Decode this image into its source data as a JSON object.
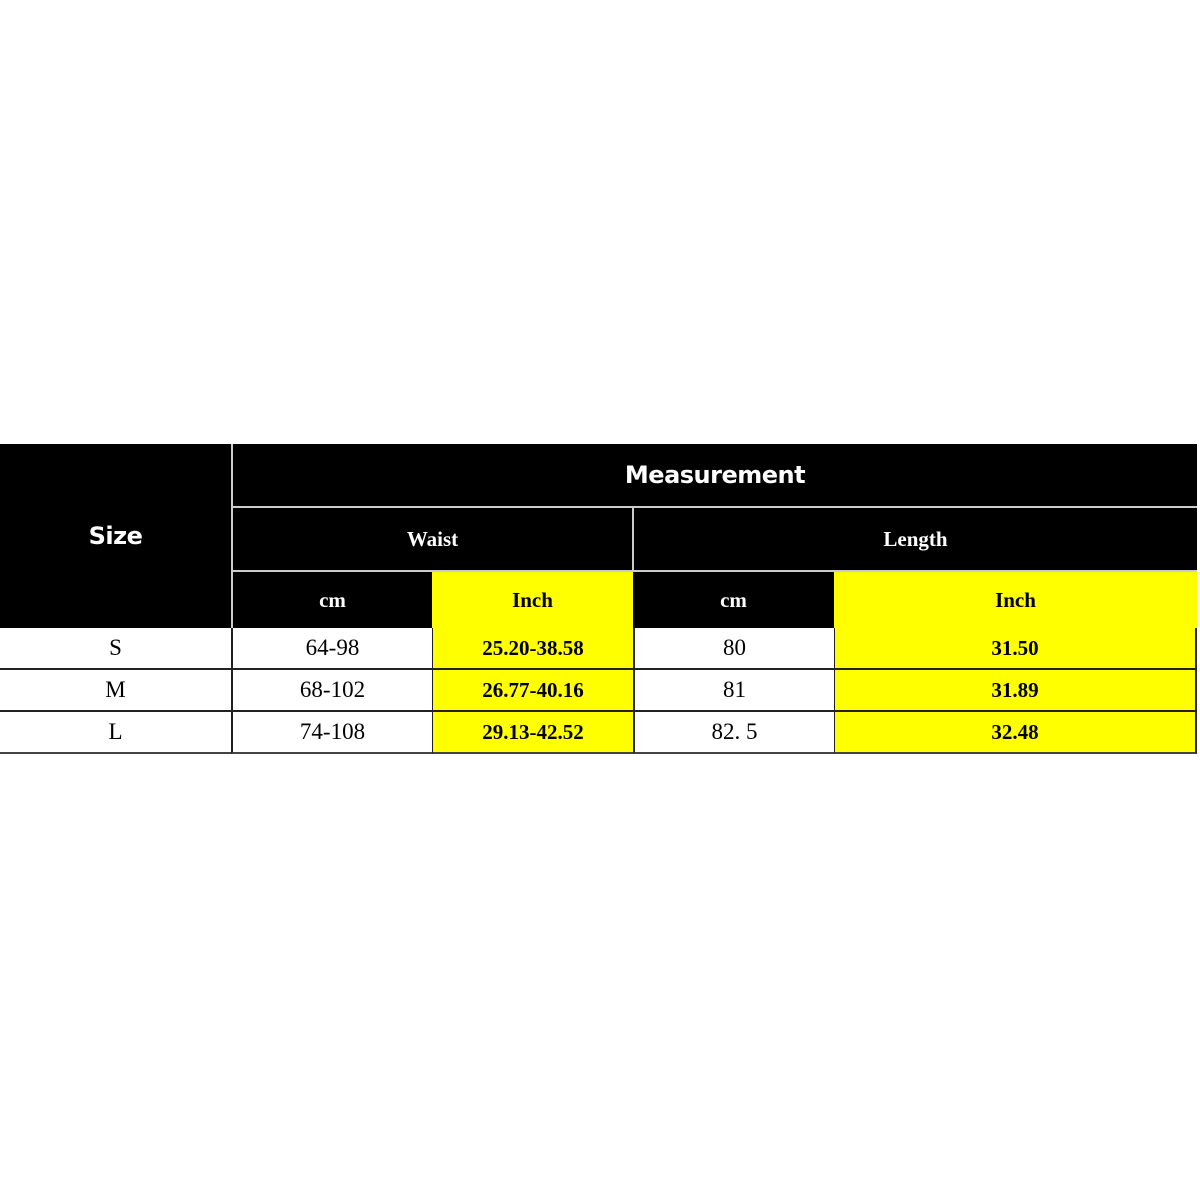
{
  "table": {
    "size_header": "Size",
    "measurement_header": "Measurement",
    "groups": [
      {
        "label": "Waist",
        "units": [
          "cm",
          "Inch"
        ]
      },
      {
        "label": "Length",
        "units": [
          "cm",
          "Inch"
        ]
      }
    ],
    "rows": [
      {
        "size": "S",
        "waist_cm": "64-98",
        "waist_inch": "25.20-38.58",
        "length_cm": "80",
        "length_inch": "31.50"
      },
      {
        "size": "M",
        "waist_cm": "68-102",
        "waist_inch": "26.77-40.16",
        "length_cm": "81",
        "length_inch": "31.89"
      },
      {
        "size": "L",
        "waist_cm": "74-108",
        "waist_inch": "29.13-42.52",
        "length_cm": "82. 5",
        "length_inch": "32.48"
      }
    ],
    "colors": {
      "header_bg": "#000000",
      "highlight": "#ffff00",
      "text_light": "#ffffff"
    }
  }
}
